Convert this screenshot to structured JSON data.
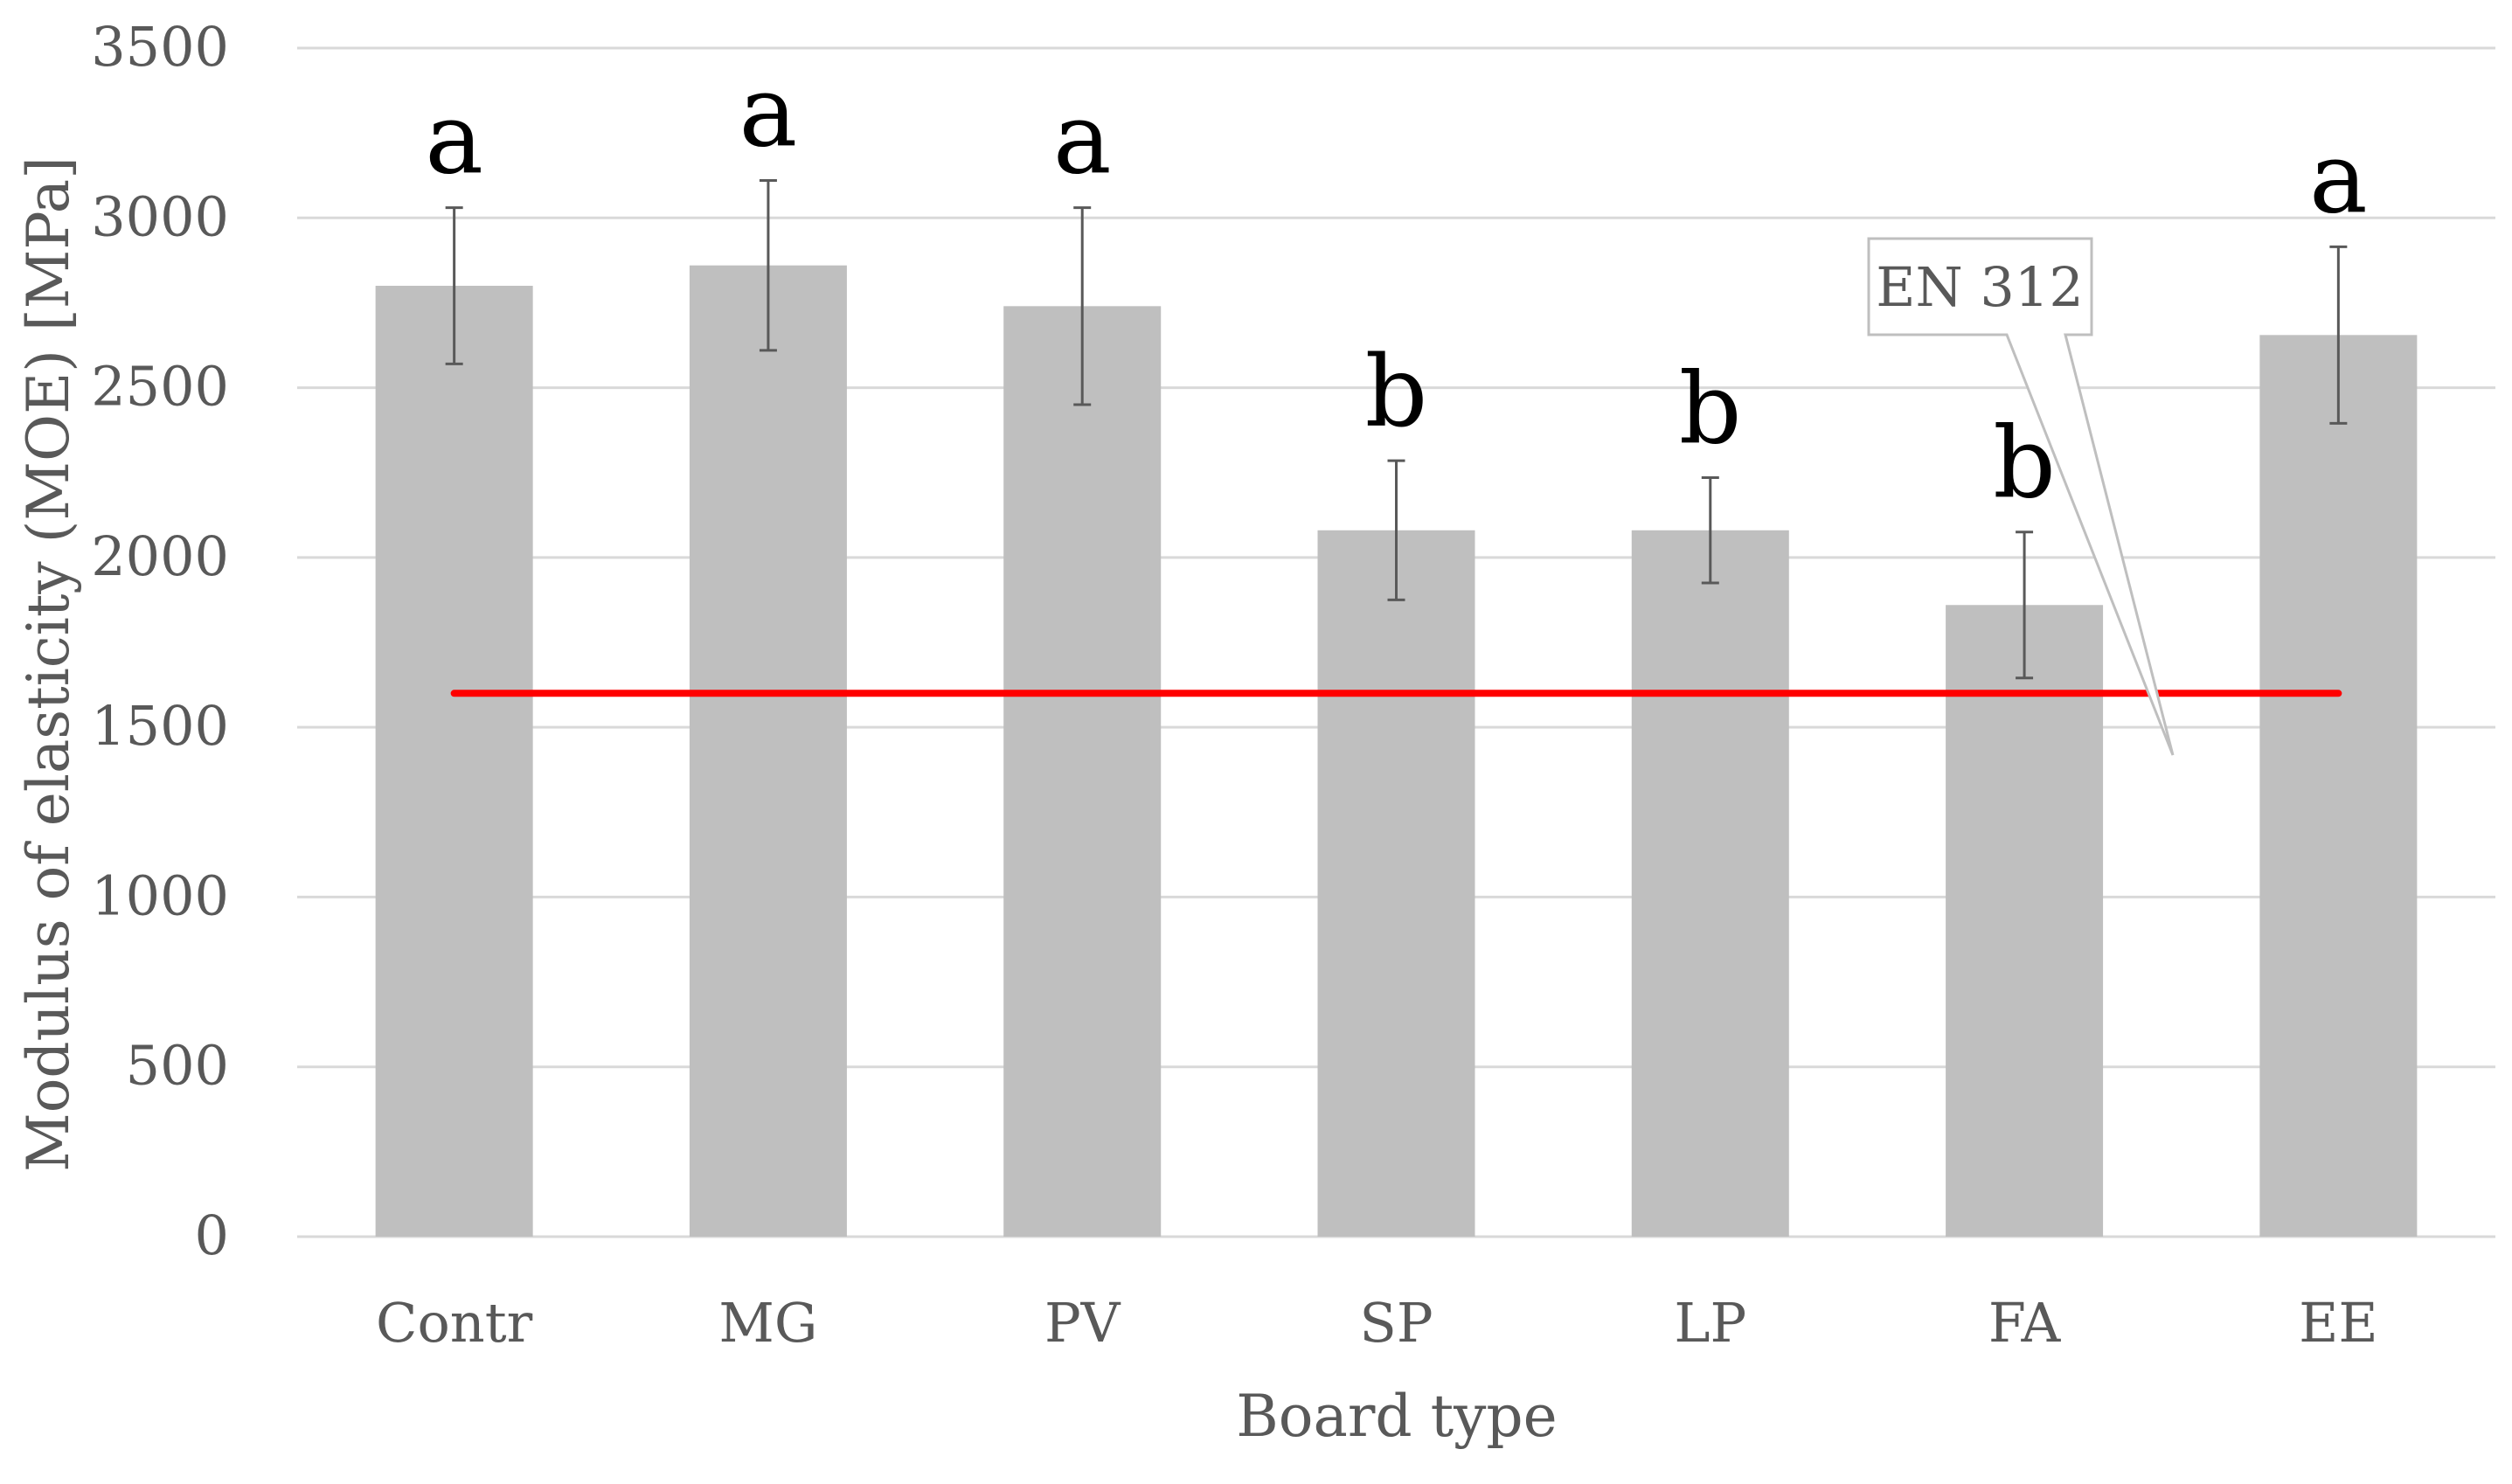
{
  "chart_data": {
    "type": "bar",
    "xlabel": "Board type",
    "ylabel": "Modulus of elasticity (MOE) [MPa]",
    "ylim": [
      0,
      3500
    ],
    "y_ticks": [
      0,
      500,
      1000,
      1500,
      2000,
      2500,
      3000,
      3500
    ],
    "y_tick_labels": [
      "0",
      "500",
      "1000",
      "1500",
      "2000",
      "2500",
      "3000",
      "3500"
    ],
    "categories": [
      "Contr",
      "MG",
      "PV",
      "SP",
      "LP",
      "FA",
      "EE"
    ],
    "values": [
      2800,
      2860,
      2740,
      2080,
      2080,
      1860,
      2655
    ],
    "error": [
      230,
      250,
      290,
      205,
      155,
      215,
      260
    ],
    "significance": [
      "a",
      "a",
      "a",
      "b",
      "b",
      "b",
      "a"
    ],
    "reference_line": {
      "value": 1600,
      "label": "EN 312",
      "color": "#ff0000"
    },
    "grid": true,
    "bar_color": "#bfbfbf",
    "grid_color": "#d9d9d9"
  }
}
